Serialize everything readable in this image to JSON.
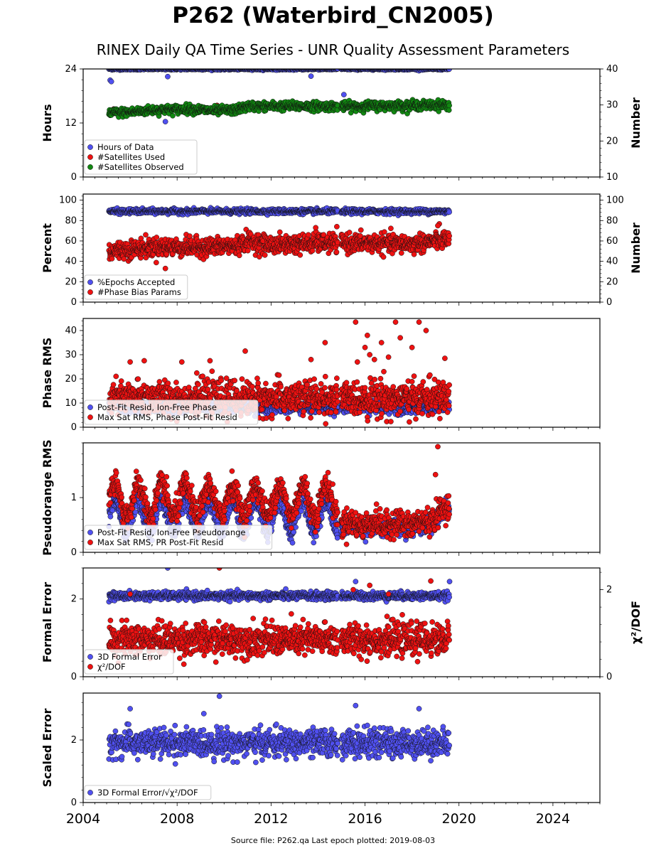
{
  "page": {
    "title": "P262 (Waterbird_CN2005)",
    "subtitle": "RINEX Daily QA Time Series - UNR Quality Assessment Parameters",
    "footer": "Source file: P262.qa Last epoch plotted: 2019-08-03"
  },
  "colors": {
    "blue": "#5050f0",
    "red": "#ee1111",
    "green": "#118811",
    "edge": "#111111"
  },
  "chart_data": [
    {
      "type": "scatter",
      "panel": "hours",
      "ylabel": "Hours",
      "ylabel_right": "Number",
      "xlim": [
        2004,
        2026
      ],
      "ylim": [
        0,
        24
      ],
      "yticks": [
        0,
        12,
        24
      ],
      "ylim_right": [
        10,
        40
      ],
      "yticks_right": [
        10,
        20,
        30,
        40
      ],
      "legend": "lower-left",
      "series": [
        {
          "name": "Hours of Data",
          "color": "blue",
          "axis": "left",
          "x_range": [
            2005.1,
            2019.6
          ],
          "base": 24,
          "amp_days": [
            [
              2005.15,
              21.5
            ],
            [
              2005.2,
              21.2
            ],
            [
              2007.6,
              22.3
            ],
            [
              2007.5,
              12.3
            ],
            [
              2013.7,
              22.4
            ],
            [
              2015.1,
              18.3
            ]
          ],
          "noise": 0.1
        },
        {
          "name": "#Satellites Used",
          "color": "red",
          "axis": "left",
          "x_range": [
            2005.1,
            2019.6
          ],
          "hidden": true,
          "points": [
            [
              2005.3,
              15.1
            ],
            [
              2009.7,
              15.9
            ],
            [
              2014.8,
              16.0
            ]
          ]
        },
        {
          "name": "#Satellites Observed",
          "color": "green",
          "axis": "right",
          "x_range": [
            2005.1,
            2019.6
          ],
          "trend": [
            [
              2005.1,
              27.8
            ],
            [
              2006.0,
              28.0
            ],
            [
              2007.0,
              28.6
            ],
            [
              2008.5,
              28.9
            ],
            [
              2009.6,
              28.4
            ],
            [
              2010.5,
              28.6
            ],
            [
              2011.0,
              29.6
            ],
            [
              2013.0,
              29.7
            ],
            [
              2015.0,
              29.6
            ],
            [
              2017.0,
              29.8
            ],
            [
              2019.6,
              30.0
            ]
          ],
          "noise": 0.6
        }
      ]
    },
    {
      "type": "scatter",
      "panel": "percent",
      "ylabel": "Percent",
      "ylabel_right": "Number",
      "xlim": [
        2004,
        2026
      ],
      "ylim": [
        0,
        106
      ],
      "yticks": [
        0,
        20,
        40,
        60,
        80,
        100
      ],
      "yticks_right": [
        0,
        20,
        40,
        60,
        80,
        100
      ],
      "legend": "lower-left",
      "series": [
        {
          "name": "%Epochs Accepted",
          "color": "blue",
          "x_range": [
            2005.1,
            2019.6
          ],
          "base": 89,
          "noise": 1.2
        },
        {
          "name": "#Phase Bias Params",
          "color": "red",
          "x_range": [
            2005.1,
            2019.6
          ],
          "trend": [
            [
              2005.1,
              50
            ],
            [
              2007.0,
              54
            ],
            [
              2009.0,
              54
            ],
            [
              2010.5,
              55
            ],
            [
              2011.0,
              60
            ],
            [
              2012.0,
              56
            ],
            [
              2014.0,
              58
            ],
            [
              2016.0,
              58
            ],
            [
              2018.0,
              57
            ],
            [
              2019.6,
              62
            ]
          ],
          "noise": 4.5,
          "outliers": [
            [
              2007.5,
              33
            ],
            [
              2013.9,
              73
            ],
            [
              2019.1,
              75
            ]
          ]
        }
      ]
    },
    {
      "type": "scatter",
      "panel": "phase_rms",
      "ylabel": "Phase RMS",
      "xlim": [
        2004,
        2026
      ],
      "ylim": [
        0,
        45
      ],
      "yticks": [
        0,
        10,
        20,
        30,
        40
      ],
      "legend": "lower-left",
      "series": [
        {
          "name": "Post-Fit Resid, Ion-Free Phase",
          "color": "blue",
          "x_range": [
            2005.1,
            2019.6
          ],
          "base": 8.2,
          "noise": 1.2
        },
        {
          "name": "Max Sat RMS, Phase Post-Fit Resid",
          "color": "red",
          "x_range": [
            2005.1,
            2019.6
          ],
          "base": 12,
          "noise": 3.5,
          "outliers": [
            [
              2006.0,
              27
            ],
            [
              2006.6,
              27.5
            ],
            [
              2008.2,
              27
            ],
            [
              2009.4,
              27.5
            ],
            [
              2010.9,
              31.5
            ],
            [
              2013.7,
              28
            ],
            [
              2014.3,
              35
            ],
            [
              2015.6,
              43.5
            ],
            [
              2016.0,
              33
            ],
            [
              2016.1,
              38
            ],
            [
              2016.2,
              30
            ],
            [
              2016.4,
              28
            ],
            [
              2016.7,
              35
            ],
            [
              2016.8,
              23
            ],
            [
              2017.0,
              29
            ],
            [
              2017.3,
              43.5
            ],
            [
              2017.5,
              37
            ],
            [
              2018.0,
              33
            ],
            [
              2018.3,
              43.5
            ],
            [
              2018.6,
              40
            ],
            [
              2019.4,
              28.5
            ]
          ]
        }
      ]
    },
    {
      "type": "scatter",
      "panel": "pseudorange_rms",
      "ylabel": "Pseudorange RMS",
      "xlim": [
        2004,
        2026
      ],
      "ylim": [
        0,
        2.0
      ],
      "yticks": [
        0,
        1
      ],
      "legend": "lower-left",
      "series": [
        {
          "name": "Post-Fit Resid, Ion-Free Pseudorange",
          "color": "blue",
          "x_range": [
            2005.1,
            2019.6
          ],
          "season": true,
          "pre_level": 0.65,
          "post_level": 0.45,
          "noise": 0.08
        },
        {
          "name": "Max Sat RMS, PR Post-Fit Resid",
          "color": "red",
          "x_range": [
            2005.1,
            2019.6
          ],
          "season": true,
          "pre_level": 0.95,
          "post_level": 0.52,
          "noise": 0.12,
          "outliers": [
            [
              2019.1,
              1.93
            ],
            [
              2019.0,
              1.42
            ]
          ]
        }
      ]
    },
    {
      "type": "scatter",
      "panel": "formal_error",
      "ylabel": "Formal Error",
      "ylabel_right": "χ²/DOF",
      "xlim": [
        2004,
        2026
      ],
      "ylim": [
        0,
        2.8
      ],
      "yticks": [
        0,
        2
      ],
      "ylim_right": [
        0,
        2.5
      ],
      "yticks_right": [
        0,
        2
      ],
      "legend": "lower-left",
      "series": [
        {
          "name": "3D Formal Error",
          "color": "blue",
          "x_range": [
            2005.1,
            2019.6
          ],
          "base": 2.08,
          "noise": 0.05,
          "outliers": [
            [
              2007.6,
              2.8
            ],
            [
              2015.6,
              2.45
            ],
            [
              2019.6,
              2.45
            ]
          ]
        },
        {
          "name": "χ²/DOF",
          "color": "red",
          "axis": "right",
          "x_range": [
            2005.1,
            2019.6
          ],
          "base": 0.85,
          "noise": 0.18,
          "outliers": [
            [
              2009.8,
              2.5
            ],
            [
              2006.0,
              1.9
            ],
            [
              2015.5,
              2.0
            ],
            [
              2016.2,
              2.1
            ],
            [
              2017.0,
              1.9
            ],
            [
              2018.8,
              2.2
            ]
          ]
        }
      ]
    },
    {
      "type": "scatter",
      "panel": "scaled_error",
      "ylabel": "Scaled Error",
      "xlabel_ticks": [
        "2004",
        "2008",
        "2012",
        "2016",
        "2020",
        "2024"
      ],
      "xticks": [
        2004,
        2008,
        2012,
        2016,
        2020,
        2024
      ],
      "xlim": [
        2004,
        2026
      ],
      "ylim": [
        0,
        3.5
      ],
      "yticks": [
        0,
        2
      ],
      "legend": "lower-left",
      "series": [
        {
          "name": "3D Formal Error/√χ²/DOF",
          "color": "blue",
          "x_range": [
            2005.1,
            2019.6
          ],
          "base": 1.9,
          "noise": 0.22,
          "outliers": [
            [
              2009.8,
              3.4
            ],
            [
              2015.6,
              3.1
            ],
            [
              2006.0,
              3.0
            ],
            [
              2018.3,
              3.0
            ]
          ]
        }
      ]
    }
  ]
}
